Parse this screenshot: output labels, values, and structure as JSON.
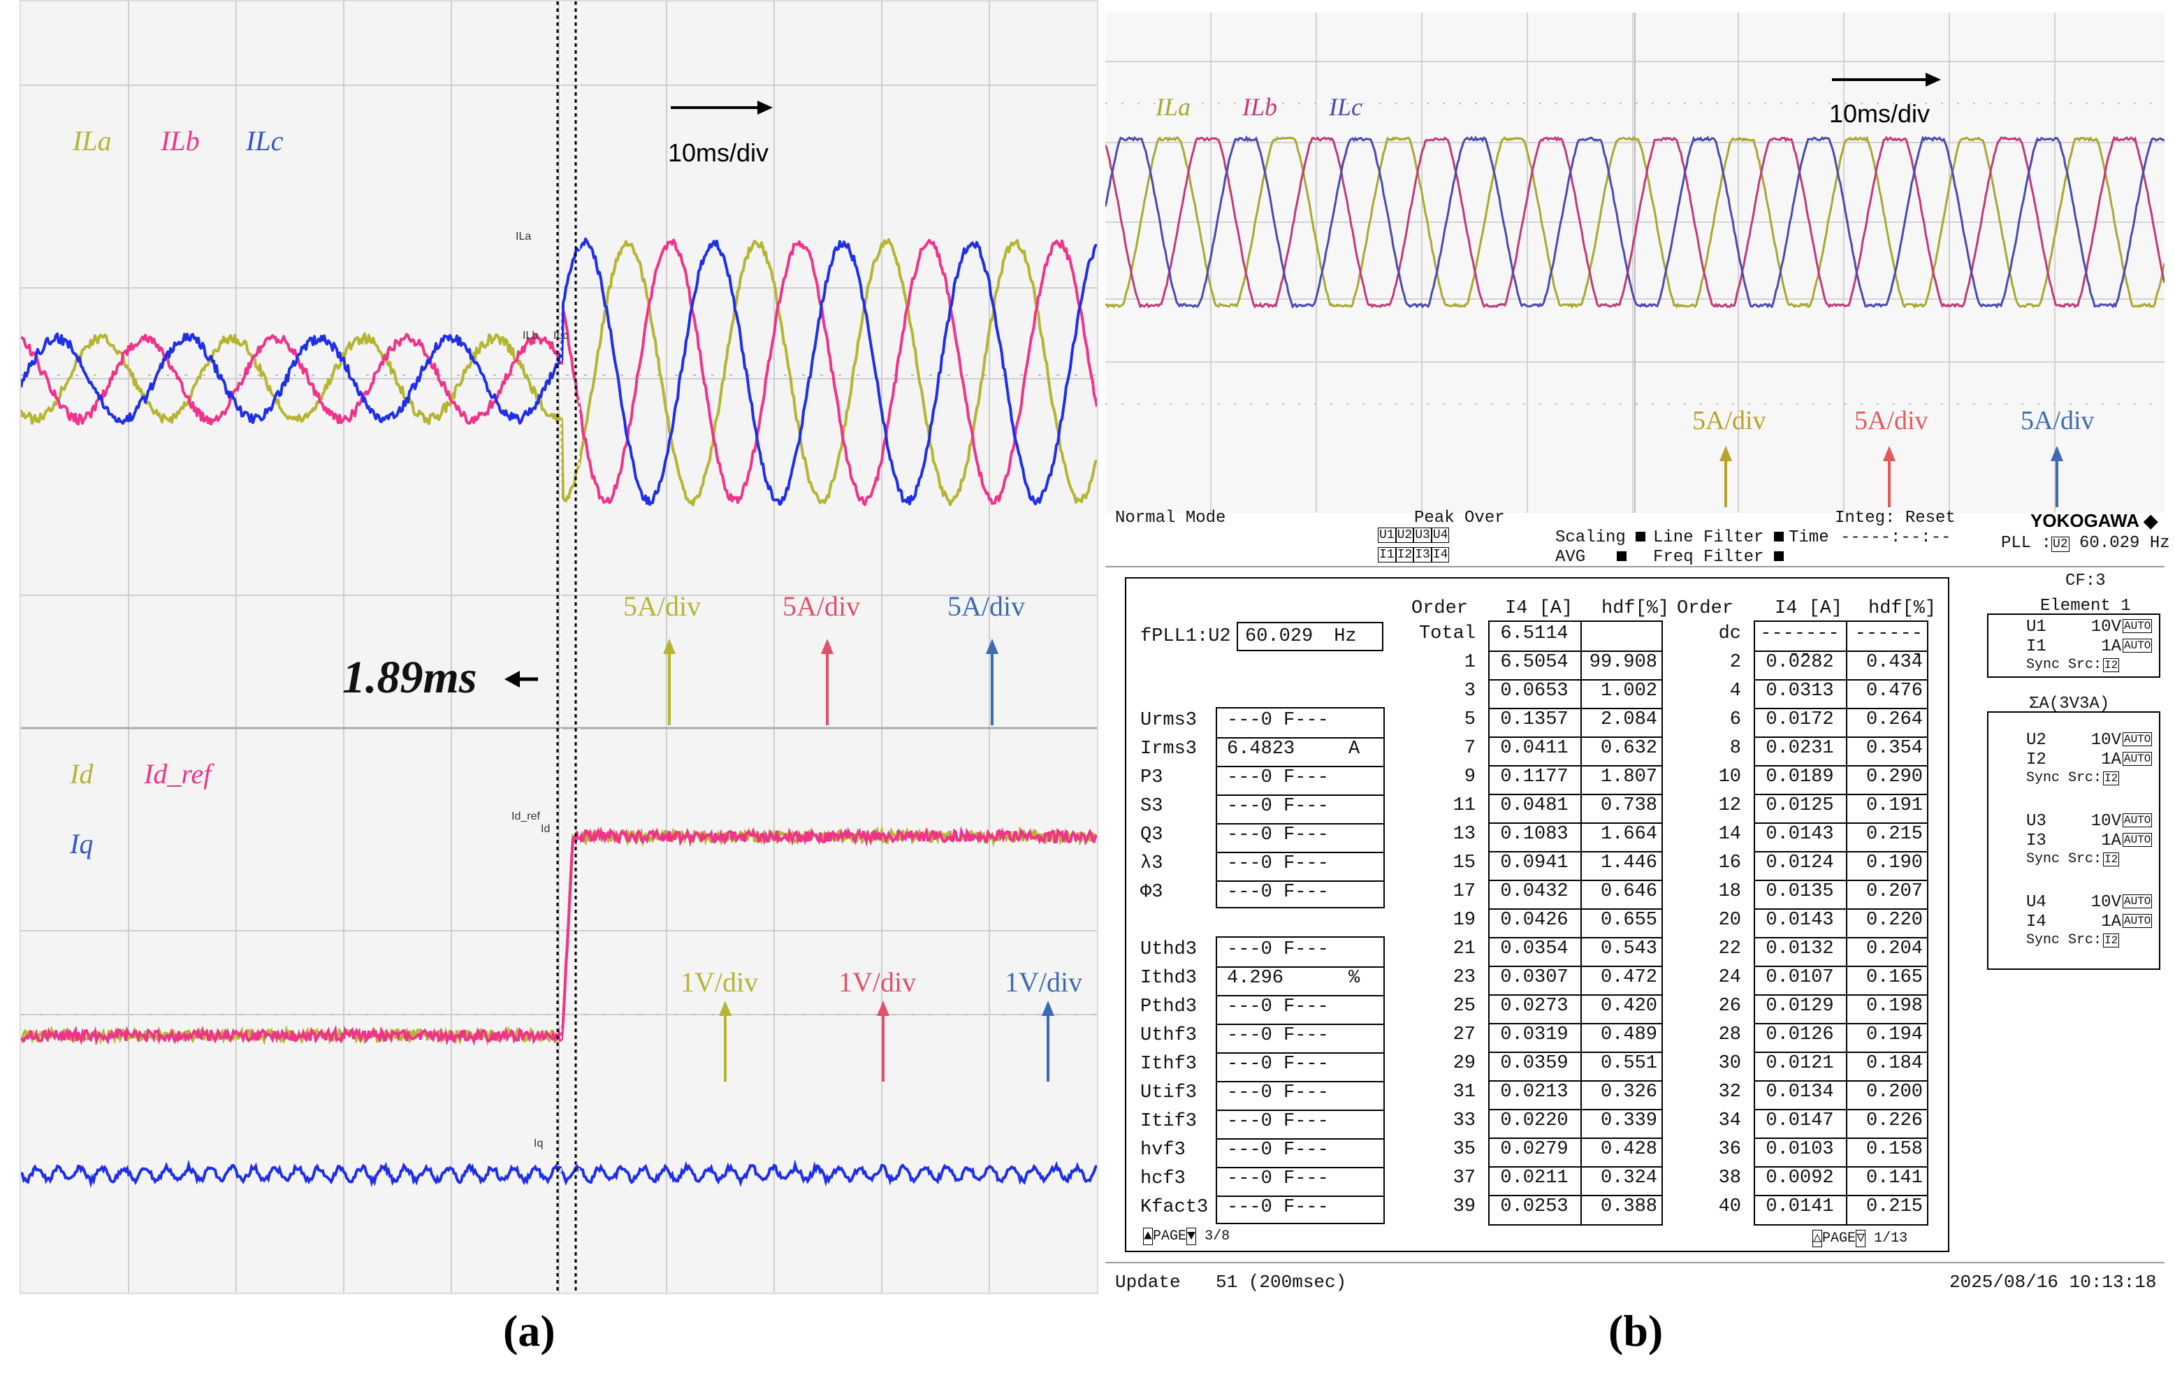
{
  "captions": {
    "a": "(a)",
    "b": "(b)"
  },
  "panel_a": {
    "top": {
      "legend": [
        "ILa",
        "ILb",
        "ILc"
      ],
      "legend_colors": [
        "#b5b532",
        "#f0338a",
        "#3355cc"
      ],
      "timescale": "10ms/div",
      "scales": [
        "5A/div",
        "5A/div",
        "5A/div"
      ],
      "trace_tags": [
        "ILa",
        "ILb",
        "ILc"
      ],
      "delay_label": "1.89ms"
    },
    "bottom": {
      "legend": [
        "Id",
        "Id_ref",
        "Iq"
      ],
      "legend_colors": [
        "#b5b532",
        "#f0338a",
        "#3355cc"
      ],
      "scales": [
        "1V/div",
        "1V/div",
        "1V/div"
      ],
      "trace_tags": [
        "Id_ref",
        "Id",
        "Iq"
      ]
    }
  },
  "panel_b": {
    "legend": [
      "ILa",
      "ILb",
      "ILc"
    ],
    "legend_colors": [
      "#a8a830",
      "#c03a78",
      "#4a4ab0"
    ],
    "timescale": "10ms/div",
    "scales": [
      "5A/div",
      "5A/div",
      "5A/div"
    ],
    "scale_colors": [
      "#b9a227",
      "#e05a5a",
      "#3d6bb0"
    ],
    "status": {
      "mode": "Normal Mode",
      "peak_over": "Peak Over",
      "peak_u": [
        "U1",
        "U2",
        "U3",
        "U4"
      ],
      "peak_i": [
        "I1",
        "I2",
        "I3",
        "I4"
      ],
      "scaling": "Scaling",
      "avg": "AVG",
      "line_filter": "Line Filter",
      "freq_filter": "Freq Filter",
      "time_label": "Time",
      "time_value": "-----:--:--",
      "integ": "Integ: Reset",
      "brand": "YOKOGAWA",
      "pll_label": "PLL :",
      "pll_src": "U2",
      "pll_value": "60.029 Hz"
    },
    "fpll": {
      "label": "fPLL1:U2",
      "value": "60.029",
      "unit": "Hz"
    },
    "params_a": [
      {
        "name": "Urms3",
        "value": "---0 F---",
        "unit": ""
      },
      {
        "name": "Irms3",
        "value": "6.4823",
        "unit": "A"
      },
      {
        "name": "P3",
        "value": "---0 F---",
        "unit": ""
      },
      {
        "name": "S3",
        "value": "---0 F---",
        "unit": ""
      },
      {
        "name": "Q3",
        "value": "---0 F---",
        "unit": ""
      },
      {
        "name": "λ3",
        "value": "---0 F---",
        "unit": ""
      },
      {
        "name": "Φ3",
        "value": "---0 F---",
        "unit": ""
      }
    ],
    "params_b": [
      {
        "name": "Uthd3",
        "value": "---0 F---",
        "unit": ""
      },
      {
        "name": "Ithd3",
        "value": "4.296",
        "unit": "%"
      },
      {
        "name": "Pthd3",
        "value": "---0 F---",
        "unit": ""
      },
      {
        "name": "Uthf3",
        "value": "---0 F---",
        "unit": ""
      },
      {
        "name": "Ithf3",
        "value": "---0 F---",
        "unit": ""
      },
      {
        "name": "Utif3",
        "value": "---0 F---",
        "unit": ""
      },
      {
        "name": "Itif3",
        "value": "---0 F---",
        "unit": ""
      },
      {
        "name": "hvf3",
        "value": "---0 F---",
        "unit": ""
      },
      {
        "name": "hcf3",
        "value": "---0 F---",
        "unit": ""
      },
      {
        "name": "Kfact3",
        "value": "---0 F---",
        "unit": ""
      }
    ],
    "harm_headers": [
      "Order",
      "I4 [A]",
      "hdf[%]"
    ],
    "harm_left": [
      [
        "Total",
        "6.5114",
        ""
      ],
      [
        "1",
        "6.5054",
        "99.908"
      ],
      [
        "3",
        "0.0653",
        "1.002"
      ],
      [
        "5",
        "0.1357",
        "2.084"
      ],
      [
        "7",
        "0.0411",
        "0.632"
      ],
      [
        "9",
        "0.1177",
        "1.807"
      ],
      [
        "11",
        "0.0481",
        "0.738"
      ],
      [
        "13",
        "0.1083",
        "1.664"
      ],
      [
        "15",
        "0.0941",
        "1.446"
      ],
      [
        "17",
        "0.0432",
        "0.646"
      ],
      [
        "19",
        "0.0426",
        "0.655"
      ],
      [
        "21",
        "0.0354",
        "0.543"
      ],
      [
        "23",
        "0.0307",
        "0.472"
      ],
      [
        "25",
        "0.0273",
        "0.420"
      ],
      [
        "27",
        "0.0319",
        "0.489"
      ],
      [
        "29",
        "0.0359",
        "0.551"
      ],
      [
        "31",
        "0.0213",
        "0.326"
      ],
      [
        "33",
        "0.0220",
        "0.339"
      ],
      [
        "35",
        "0.0279",
        "0.428"
      ],
      [
        "37",
        "0.0211",
        "0.324"
      ],
      [
        "39",
        "0.0253",
        "0.388"
      ]
    ],
    "harm_right": [
      [
        "dc",
        "---------",
        "-------"
      ],
      [
        "2",
        "0.0282",
        "0.434"
      ],
      [
        "4",
        "0.0313",
        "0.476"
      ],
      [
        "6",
        "0.0172",
        "0.264"
      ],
      [
        "8",
        "0.0231",
        "0.354"
      ],
      [
        "10",
        "0.0189",
        "0.290"
      ],
      [
        "12",
        "0.0125",
        "0.191"
      ],
      [
        "14",
        "0.0143",
        "0.215"
      ],
      [
        "16",
        "0.0124",
        "0.190"
      ],
      [
        "18",
        "0.0135",
        "0.207"
      ],
      [
        "20",
        "0.0143",
        "0.220"
      ],
      [
        "22",
        "0.0132",
        "0.204"
      ],
      [
        "24",
        "0.0107",
        "0.165"
      ],
      [
        "26",
        "0.0129",
        "0.198"
      ],
      [
        "28",
        "0.0126",
        "0.194"
      ],
      [
        "30",
        "0.0121",
        "0.184"
      ],
      [
        "32",
        "0.0134",
        "0.200"
      ],
      [
        "34",
        "0.0147",
        "0.226"
      ],
      [
        "36",
        "0.0103",
        "0.158"
      ],
      [
        "38",
        "0.0092",
        "0.141"
      ],
      [
        "40",
        "0.0141",
        "0.215"
      ]
    ],
    "page_left": {
      "label": "PAGE",
      "value": "3/8"
    },
    "page_right": {
      "label": "PAGE",
      "value": "1/13"
    },
    "side": {
      "cf": "CF:3",
      "element_title": "Element 1",
      "element_rows": [
        [
          "U1",
          "10V",
          "AUTO"
        ],
        [
          "I1",
          "1A",
          "AUTO"
        ]
      ],
      "element_sync": [
        "Sync Src:",
        "I2"
      ],
      "sigma_title": "ΣA(3V3A)",
      "groups": [
        {
          "rows": [
            [
              "U2",
              "10V",
              "AUTO"
            ],
            [
              "I2",
              "1A",
              "AUTO"
            ]
          ],
          "sync": [
            "Sync Src:",
            "I2"
          ]
        },
        {
          "rows": [
            [
              "U3",
              "10V",
              "AUTO"
            ],
            [
              "I3",
              "1A",
              "AUTO"
            ]
          ],
          "sync": [
            "Sync Src:",
            "I2"
          ]
        },
        {
          "rows": [
            [
              "U4",
              "10V",
              "AUTO"
            ],
            [
              "I4",
              "1A",
              "AUTO"
            ]
          ],
          "sync": [
            "Sync Src:",
            "I2"
          ]
        }
      ]
    },
    "footer": {
      "update_label": "Update",
      "update_value": "51 (200msec)",
      "datetime": "2025/08/16 10:13:18"
    }
  },
  "chart_data": [
    {
      "type": "line",
      "panel": "a-top",
      "series": [
        {
          "name": "ILa"
        },
        {
          "name": "ILb"
        },
        {
          "name": "ILc"
        }
      ],
      "annotations": [
        "10ms/div",
        "5A/div",
        "1.89ms"
      ]
    },
    {
      "type": "line",
      "panel": "a-bottom",
      "series": [
        {
          "name": "Id"
        },
        {
          "name": "Id_ref"
        },
        {
          "name": "Iq"
        }
      ],
      "annotations": [
        "1V/div"
      ]
    },
    {
      "type": "line",
      "panel": "b",
      "series": [
        {
          "name": "ILa"
        },
        {
          "name": "ILb"
        },
        {
          "name": "ILc"
        }
      ],
      "annotations": [
        "10ms/div",
        "5A/div"
      ]
    }
  ]
}
